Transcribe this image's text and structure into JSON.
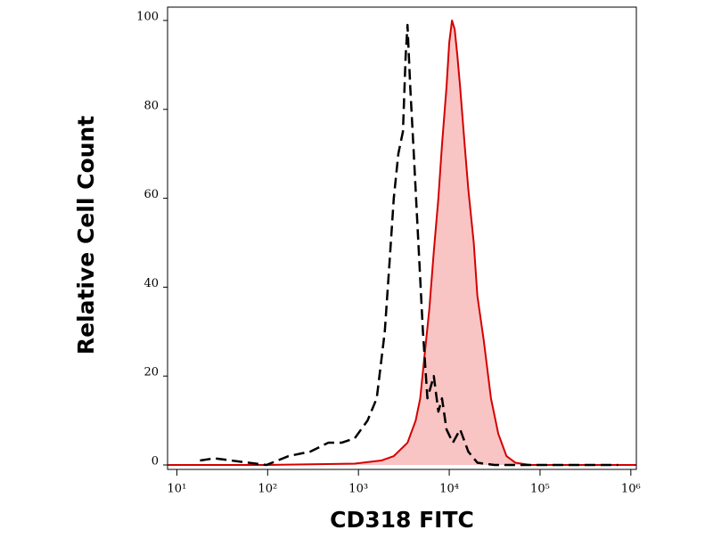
{
  "chart_data": {
    "type": "histogram-overlay",
    "xlabel": "CD318 FITC",
    "ylabel": "Relative Cell Count",
    "xscale": "log",
    "xlim": [
      7.9,
      1150000
    ],
    "ylim": [
      -1,
      103
    ],
    "xticks": [
      {
        "value": 10,
        "label": "10¹"
      },
      {
        "value": 100,
        "label": "10²"
      },
      {
        "value": 1000,
        "label": "10³"
      },
      {
        "value": 10000,
        "label": "10⁴"
      },
      {
        "value": 100000,
        "label": "10⁵"
      },
      {
        "value": 1000000,
        "label": "10⁶"
      }
    ],
    "yticks": [
      0,
      20,
      40,
      60,
      80,
      100
    ],
    "series": [
      {
        "color": "#d40000",
        "fill": "#f9c4c4",
        "dash": false,
        "x": [
          8,
          97,
          910,
          1780,
          2450,
          3470,
          4270,
          4790,
          5370,
          6030,
          6760,
          7590,
          8320,
          9330,
          10000,
          10720,
          11480,
          12300,
          13180,
          14790,
          16220,
          18620,
          20420,
          24000,
          28800,
          34700,
          42700,
          53700,
          77600,
          1150000
        ],
        "values": [
          0,
          0,
          0.3,
          1,
          2,
          5,
          10,
          15,
          25,
          35,
          48,
          60,
          72,
          85,
          95,
          100,
          98,
          92,
          85,
          72,
          62,
          50,
          38,
          28,
          15,
          7,
          2,
          0.5,
          0,
          0
        ]
      },
      {
        "color": "#000000",
        "fill": null,
        "dash": true,
        "x": [
          18,
          26,
          40,
          62,
          97,
          170,
          295,
          465,
          650,
          910,
          1260,
          1590,
          1950,
          2190,
          2450,
          2750,
          3090,
          3310,
          3470,
          3720,
          4070,
          4570,
          5130,
          5750,
          6760,
          7590,
          8320,
          9330,
          10960,
          13180,
          16220,
          20420,
          31620,
          77600,
          724000
        ],
        "values": [
          1,
          1.5,
          1,
          0.5,
          0,
          2,
          3,
          5,
          5,
          6,
          10,
          15,
          30,
          45,
          60,
          70,
          75,
          92,
          99,
          85,
          70,
          50,
          30,
          15,
          20,
          12,
          15,
          8,
          5,
          8,
          3,
          0.5,
          0,
          0,
          0
        ]
      }
    ]
  }
}
